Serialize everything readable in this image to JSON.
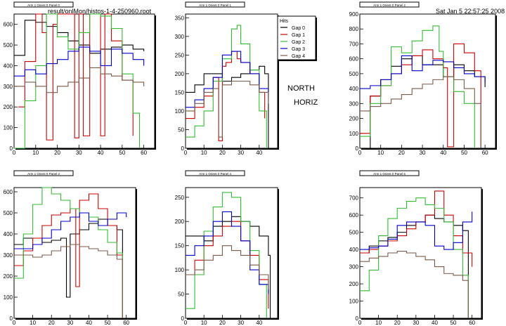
{
  "header": {
    "file_label": "result/onlMon/histos-1-4-250960.root",
    "date_label": "Sat Jan  5 22:57:25 2008"
  },
  "overlay": {
    "line1": "NORTH",
    "line2": "HORIZ"
  },
  "colors": {
    "Gap 0": "#000000",
    "Gap 1": "#cc0000",
    "Gap 2": "#33bb33",
    "Gap 3": "#0000cc",
    "Gap 4": "#7a5a4a"
  },
  "chart_data": [
    {
      "type": "line",
      "title": "Arm 1 Orient 0 Panel 0",
      "xlim": [
        0,
        65
      ],
      "ylim": [
        0,
        650
      ],
      "xticks": [
        0,
        10,
        20,
        30,
        40,
        50,
        60
      ],
      "yticks": [
        0,
        100,
        200,
        300,
        400,
        500,
        600
      ],
      "series": [
        {
          "name": "Gap 0",
          "x": [
            0,
            5,
            10,
            15,
            20,
            25,
            30,
            35,
            40,
            45,
            50,
            55,
            60
          ],
          "y": [
            450,
            620,
            610,
            590,
            560,
            520,
            500,
            460,
            480,
            490,
            500,
            480,
            470
          ]
        },
        {
          "name": "Gap 1",
          "x": [
            2,
            5,
            10,
            13,
            15,
            18,
            20,
            25,
            28,
            30,
            32,
            35,
            38,
            40,
            42,
            45,
            50,
            55
          ],
          "y": [
            200,
            420,
            650,
            560,
            40,
            600,
            680,
            720,
            50,
            760,
            60,
            800,
            750,
            60,
            720,
            520,
            330,
            60
          ]
        },
        {
          "name": "Gap 2",
          "x": [
            0,
            5,
            10,
            15,
            20,
            25,
            30,
            35,
            40,
            45,
            50,
            55,
            58
          ],
          "y": [
            0,
            230,
            400,
            650,
            540,
            480,
            560,
            660,
            640,
            580,
            360,
            170,
            0
          ]
        },
        {
          "name": "Gap 3",
          "x": [
            0,
            5,
            10,
            15,
            20,
            25,
            30,
            35,
            40,
            45,
            50,
            55,
            60
          ],
          "y": [
            350,
            380,
            360,
            410,
            430,
            470,
            490,
            470,
            400,
            480,
            460,
            430,
            400
          ]
        },
        {
          "name": "Gap 4",
          "x": [
            0,
            5,
            10,
            15,
            20,
            25,
            30,
            35,
            40,
            45,
            50,
            55,
            60
          ],
          "y": [
            300,
            320,
            300,
            270,
            300,
            320,
            340,
            390,
            360,
            350,
            330,
            320,
            300
          ]
        }
      ]
    },
    {
      "type": "line",
      "title": "Arm 1 Orient 0 Panel 1",
      "xlim": [
        0,
        50
      ],
      "ylim": [
        0,
        360
      ],
      "xticks": [
        0,
        10,
        20,
        30,
        40
      ],
      "yticks": [
        0,
        50,
        100,
        150,
        200,
        250,
        300,
        350
      ],
      "legend": {
        "title": "Hits",
        "position": "top-right"
      },
      "series": [
        {
          "name": "Gap 0",
          "x": [
            0,
            5,
            10,
            15,
            20,
            25,
            30,
            35,
            40,
            43,
            45
          ],
          "y": [
            150,
            170,
            200,
            200,
            180,
            190,
            200,
            210,
            220,
            200,
            0
          ]
        },
        {
          "name": "Gap 1",
          "x": [
            0,
            5,
            10,
            15,
            18,
            20,
            22,
            25,
            28,
            30,
            35,
            40,
            43
          ],
          "y": [
            80,
            110,
            140,
            190,
            20,
            220,
            230,
            260,
            240,
            230,
            200,
            150,
            80
          ]
        },
        {
          "name": "Gap 2",
          "x": [
            0,
            5,
            10,
            15,
            20,
            25,
            28,
            30,
            35,
            40,
            44
          ],
          "y": [
            30,
            60,
            100,
            180,
            240,
            320,
            330,
            280,
            210,
            100,
            0
          ]
        },
        {
          "name": "Gap 3",
          "x": [
            0,
            5,
            10,
            15,
            20,
            25,
            30,
            35,
            40,
            45
          ],
          "y": [
            110,
            130,
            160,
            190,
            250,
            260,
            230,
            200,
            160,
            130
          ]
        },
        {
          "name": "Gap 4",
          "x": [
            0,
            5,
            10,
            15,
            18,
            20,
            25,
            30,
            35,
            40,
            45
          ],
          "y": [
            100,
            120,
            150,
            160,
            30,
            170,
            180,
            180,
            170,
            150,
            120
          ]
        }
      ]
    },
    {
      "type": "line",
      "title": "Arm 1 Orient 0 Panel 2",
      "xlim": [
        0,
        65
      ],
      "ylim": [
        0,
        900
      ],
      "xticks": [
        0,
        10,
        20,
        30,
        40,
        50,
        60
      ],
      "yticks": [
        0,
        100,
        200,
        300,
        400,
        500,
        600,
        700,
        800,
        900
      ],
      "series": [
        {
          "name": "Gap 0",
          "x": [
            0,
            5,
            10,
            15,
            20,
            25,
            30,
            35,
            40,
            45,
            50,
            55,
            60
          ],
          "y": [
            0,
            350,
            460,
            550,
            600,
            620,
            560,
            560,
            480,
            560,
            520,
            480,
            410
          ]
        },
        {
          "name": "Gap 1",
          "x": [
            0,
            5,
            10,
            15,
            20,
            25,
            30,
            35,
            40,
            42,
            45,
            50,
            55,
            58
          ],
          "y": [
            100,
            350,
            420,
            500,
            560,
            620,
            660,
            600,
            540,
            10,
            700,
            640,
            520,
            0
          ]
        },
        {
          "name": "Gap 2",
          "x": [
            0,
            5,
            10,
            15,
            20,
            25,
            30,
            35,
            38,
            40,
            45,
            50,
            55
          ],
          "y": [
            80,
            300,
            420,
            680,
            640,
            720,
            790,
            820,
            650,
            480,
            380,
            300,
            0
          ]
        },
        {
          "name": "Gap 3",
          "x": [
            0,
            5,
            10,
            15,
            20,
            25,
            30,
            35,
            40,
            45,
            50,
            55,
            60
          ],
          "y": [
            400,
            420,
            460,
            500,
            620,
            520,
            560,
            590,
            580,
            540,
            500,
            480,
            440
          ]
        },
        {
          "name": "Gap 4",
          "x": [
            0,
            5,
            10,
            15,
            20,
            25,
            30,
            35,
            40,
            45,
            50,
            55,
            58
          ],
          "y": [
            250,
            280,
            300,
            330,
            360,
            400,
            430,
            460,
            480,
            460,
            400,
            300,
            0
          ]
        }
      ]
    },
    {
      "type": "line",
      "title": "Arm 1 Orient 0 Panel 3",
      "xlim": [
        0,
        65
      ],
      "ylim": [
        0,
        620
      ],
      "xticks": [
        0,
        10,
        20,
        30,
        40,
        50,
        60
      ],
      "yticks": [
        0,
        100,
        200,
        300,
        400,
        500,
        600
      ],
      "series": [
        {
          "name": "Gap 0",
          "x": [
            0,
            5,
            10,
            15,
            20,
            25,
            28,
            30,
            35,
            40,
            45,
            50,
            55,
            58
          ],
          "y": [
            350,
            380,
            380,
            360,
            370,
            380,
            100,
            400,
            420,
            450,
            470,
            440,
            420,
            0
          ]
        },
        {
          "name": "Gap 1",
          "x": [
            0,
            5,
            10,
            15,
            20,
            25,
            30,
            33,
            35,
            40,
            45,
            50,
            55,
            58
          ],
          "y": [
            250,
            320,
            380,
            440,
            490,
            500,
            520,
            150,
            560,
            590,
            520,
            440,
            300,
            0
          ]
        },
        {
          "name": "Gap 2",
          "x": [
            0,
            5,
            10,
            15,
            20,
            25,
            30,
            35,
            40,
            45,
            50,
            55,
            58
          ],
          "y": [
            190,
            400,
            540,
            620,
            590,
            560,
            520,
            500,
            480,
            420,
            360,
            310,
            0
          ]
        },
        {
          "name": "Gap 3",
          "x": [
            0,
            5,
            10,
            15,
            20,
            25,
            30,
            35,
            40,
            45,
            50,
            55,
            60
          ],
          "y": [
            330,
            330,
            350,
            380,
            420,
            460,
            480,
            500,
            460,
            440,
            470,
            500,
            480
          ]
        },
        {
          "name": "Gap 4",
          "x": [
            0,
            5,
            10,
            15,
            20,
            25,
            30,
            35,
            40,
            45,
            50,
            55,
            58
          ],
          "y": [
            300,
            300,
            290,
            300,
            320,
            340,
            350,
            340,
            330,
            320,
            300,
            280,
            0
          ]
        }
      ]
    },
    {
      "type": "line",
      "title": "Arm 1 Orient 0 Panel 4",
      "xlim": [
        0,
        50
      ],
      "ylim": [
        0,
        270
      ],
      "xticks": [
        0,
        10,
        20,
        30,
        40
      ],
      "yticks": [
        0,
        50,
        100,
        150,
        200,
        250
      ],
      "series": [
        {
          "name": "Gap 0",
          "x": [
            0,
            5,
            10,
            15,
            20,
            25,
            30,
            35,
            40,
            45,
            46
          ],
          "y": [
            170,
            170,
            160,
            190,
            200,
            210,
            200,
            190,
            170,
            130,
            0
          ]
        },
        {
          "name": "Gap 1",
          "x": [
            0,
            5,
            10,
            15,
            20,
            25,
            30,
            35,
            40,
            45
          ],
          "y": [
            90,
            120,
            150,
            170,
            190,
            200,
            160,
            130,
            80,
            20
          ]
        },
        {
          "name": "Gap 2",
          "x": [
            0,
            5,
            10,
            15,
            20,
            25,
            30,
            35,
            40,
            44
          ],
          "y": [
            20,
            90,
            180,
            230,
            260,
            250,
            200,
            140,
            70,
            0
          ]
        },
        {
          "name": "Gap 3",
          "x": [
            0,
            5,
            10,
            15,
            20,
            25,
            30,
            35,
            40,
            45
          ],
          "y": [
            130,
            150,
            170,
            200,
            220,
            190,
            160,
            100,
            70,
            50
          ]
        },
        {
          "name": "Gap 4",
          "x": [
            0,
            5,
            10,
            15,
            20,
            25,
            30,
            35,
            40,
            45
          ],
          "y": [
            90,
            100,
            120,
            130,
            150,
            140,
            130,
            110,
            90,
            60
          ]
        }
      ]
    },
    {
      "type": "line",
      "title": "Arm 1 Orient 0 Panel 5",
      "xlim": [
        0,
        65
      ],
      "ylim": [
        0,
        760
      ],
      "xticks": [
        0,
        10,
        20,
        30,
        40,
        50,
        60
      ],
      "yticks": [
        0,
        100,
        200,
        300,
        400,
        500,
        600,
        700
      ],
      "series": [
        {
          "name": "Gap 0",
          "x": [
            0,
            5,
            10,
            15,
            20,
            25,
            30,
            35,
            40,
            45,
            50,
            55,
            58
          ],
          "y": [
            380,
            420,
            450,
            470,
            500,
            540,
            560,
            600,
            580,
            560,
            540,
            510,
            0
          ]
        },
        {
          "name": "Gap 1",
          "x": [
            0,
            5,
            10,
            15,
            20,
            25,
            30,
            35,
            40,
            45,
            50,
            55,
            60
          ],
          "y": [
            380,
            400,
            420,
            450,
            480,
            520,
            560,
            600,
            740,
            600,
            480,
            380,
            300
          ]
        },
        {
          "name": "Gap 2",
          "x": [
            0,
            5,
            10,
            15,
            20,
            25,
            30,
            35,
            40,
            45,
            50,
            55,
            58
          ],
          "y": [
            160,
            280,
            480,
            580,
            640,
            680,
            700,
            660,
            640,
            560,
            400,
            250,
            0
          ]
        },
        {
          "name": "Gap 3",
          "x": [
            0,
            5,
            10,
            15,
            20,
            25,
            30,
            35,
            40,
            45,
            50,
            55,
            60
          ],
          "y": [
            400,
            410,
            420,
            460,
            540,
            560,
            560,
            540,
            420,
            400,
            440,
            560,
            620
          ]
        },
        {
          "name": "Gap 4",
          "x": [
            0,
            5,
            10,
            15,
            20,
            25,
            30,
            35,
            40,
            45,
            50,
            55,
            58
          ],
          "y": [
            330,
            350,
            360,
            380,
            390,
            380,
            360,
            340,
            300,
            260,
            250,
            220,
            0
          ]
        }
      ]
    }
  ]
}
